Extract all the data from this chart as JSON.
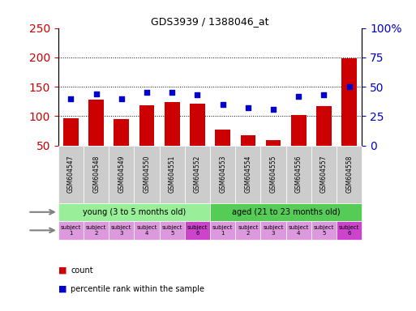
{
  "title": "GDS3939 / 1388046_at",
  "samples": [
    "GSM604547",
    "GSM604548",
    "GSM604549",
    "GSM604550",
    "GSM604551",
    "GSM604552",
    "GSM604553",
    "GSM604554",
    "GSM604555",
    "GSM604556",
    "GSM604557",
    "GSM604558"
  ],
  "counts": [
    97,
    128,
    95,
    118,
    124,
    121,
    77,
    68,
    59,
    102,
    117,
    199
  ],
  "percentile_ranks_raw": [
    130,
    138,
    130,
    140,
    140,
    136,
    120,
    114,
    112,
    134,
    136,
    150
  ],
  "bar_color": "#cc0000",
  "dot_color": "#0000cc",
  "ylim_left": [
    50,
    250
  ],
  "ylim_right": [
    0,
    100
  ],
  "yticks_left": [
    50,
    100,
    150,
    200,
    250
  ],
  "yticks_right": [
    0,
    25,
    50,
    75,
    100
  ],
  "ytick_labels_right": [
    "0",
    "25",
    "50",
    "75",
    "100%"
  ],
  "grid_values": [
    100,
    150,
    200
  ],
  "age_groups": [
    {
      "label": "young (3 to 5 months old)",
      "start": 0,
      "end": 6,
      "color": "#99ee99"
    },
    {
      "label": "aged (21 to 23 months old)",
      "start": 6,
      "end": 12,
      "color": "#55cc55"
    }
  ],
  "specimens": [
    "subject\n1",
    "subject\n2",
    "subject\n3",
    "subject\n4",
    "subject\n5",
    "subject\n6",
    "subject\n1",
    "subject\n2",
    "subject\n3",
    "subject\n4",
    "subject\n5",
    "subject\n6"
  ],
  "specimen_colors": [
    "#dd99dd",
    "#dd99dd",
    "#dd99dd",
    "#dd99dd",
    "#dd99dd",
    "#cc44cc",
    "#dd99dd",
    "#dd99dd",
    "#dd99dd",
    "#dd99dd",
    "#dd99dd",
    "#cc44cc"
  ],
  "xticklabel_bg": "#cccccc",
  "legend_count_color": "#cc0000",
  "legend_dot_color": "#0000cc"
}
